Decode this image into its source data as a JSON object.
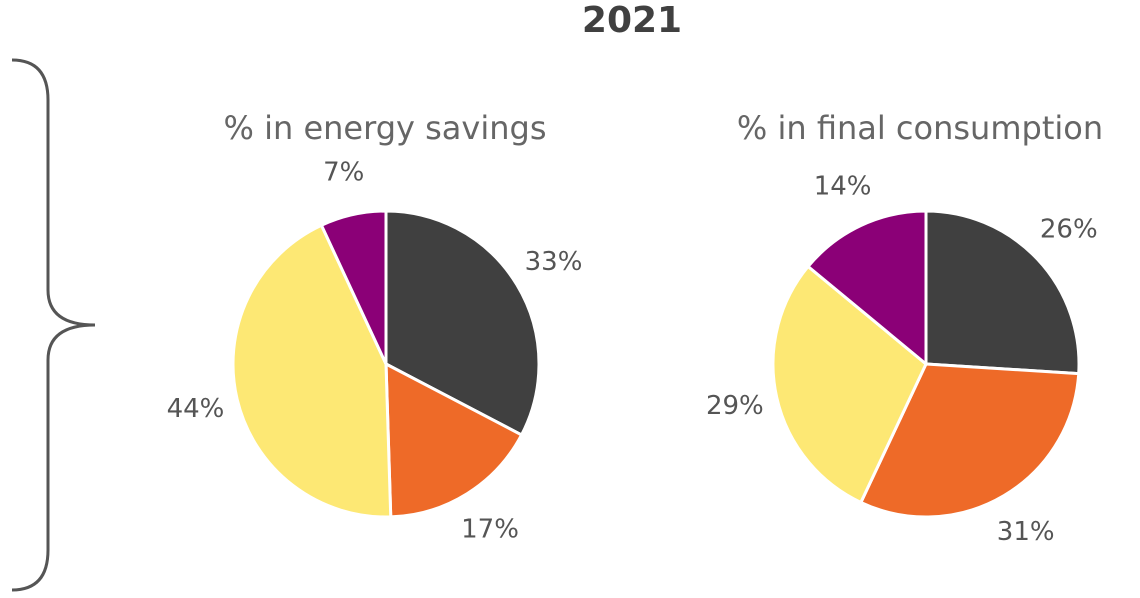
{
  "title": "2021",
  "chart_data": [
    {
      "type": "pie",
      "title": "% in energy savings",
      "values": [
        33,
        17,
        44,
        7
      ],
      "value_labels": [
        "33%",
        "17%",
        "44%",
        "7%"
      ],
      "colors": [
        "#404040",
        "#ee6a28",
        "#fde874",
        "#8b0077"
      ]
    },
    {
      "type": "pie",
      "title": "% in final consumption",
      "values": [
        26,
        31,
        29,
        14
      ],
      "value_labels": [
        "26%",
        "31%",
        "29%",
        "14%"
      ],
      "colors": [
        "#404040",
        "#ee6a28",
        "#fde874",
        "#8b0077"
      ]
    }
  ]
}
